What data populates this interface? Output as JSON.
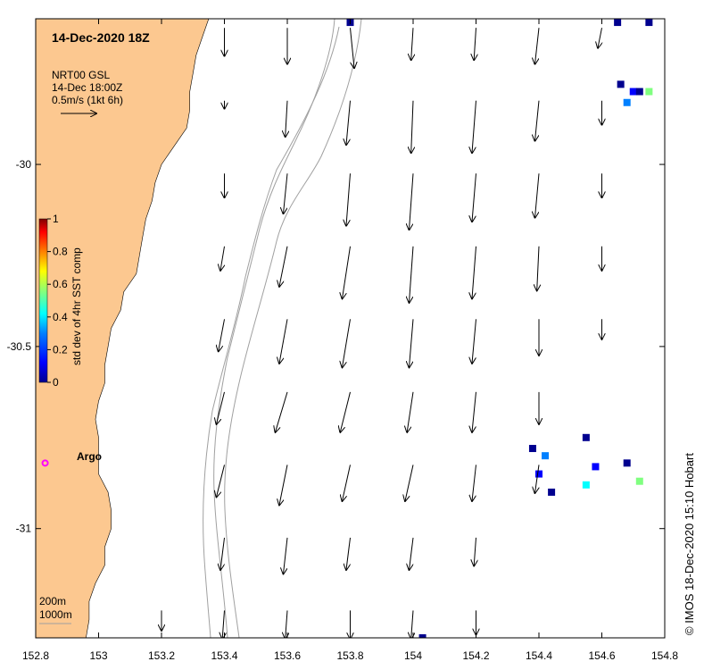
{
  "title": "14-Dec-2020 18Z",
  "product": {
    "line1": "NRT00 GSL",
    "line2": "14-Dec 18:00Z",
    "line3": "0.5m/s (1kt 6h)"
  },
  "colorbar": {
    "label": "std dev of 4hr SST comp",
    "ticks": [
      "1",
      "0.8",
      "0.6",
      "0.4",
      "0.2",
      "0"
    ],
    "colors": [
      "#7f0000",
      "#ff0000",
      "#ff8000",
      "#ffff00",
      "#80ff80",
      "#00ffff",
      "#0080ff",
      "#0000ff",
      "#00008f"
    ]
  },
  "x_ticks": [
    "152.8",
    "153",
    "153.2",
    "153.4",
    "153.6",
    "153.8",
    "154",
    "154.2",
    "154.4",
    "154.6",
    "154.8"
  ],
  "y_ticks": [
    "-30",
    "-30.5",
    "-31"
  ],
  "argo_label": "Argo",
  "isobaths": {
    "shallow": "200m",
    "deep": "1000m"
  },
  "credit": "© IMOS 18-Dec-2020 15:10 Hobart",
  "colors": {
    "land": "#fcc890",
    "argo": "#ff00ff",
    "isobath": "#a0a0a0",
    "sst_dark": "#00008f",
    "sst_mid": "#0000ff"
  },
  "map_data": {
    "lon_range": [
      152.8,
      154.8
    ],
    "lat_range": [
      -31.3,
      -29.6
    ],
    "land_coast_latlon": [
      [
        -29.6,
        153.35
      ],
      [
        -29.65,
        153.33
      ],
      [
        -29.7,
        153.31
      ],
      [
        -29.75,
        153.3
      ],
      [
        -29.8,
        153.29
      ],
      [
        -29.85,
        153.29
      ],
      [
        -29.9,
        153.28
      ],
      [
        -29.95,
        153.24
      ],
      [
        -30.0,
        153.2
      ],
      [
        -30.05,
        153.18
      ],
      [
        -30.1,
        153.17
      ],
      [
        -30.15,
        153.15
      ],
      [
        -30.2,
        153.14
      ],
      [
        -30.25,
        153.13
      ],
      [
        -30.3,
        153.12
      ],
      [
        -30.35,
        153.08
      ],
      [
        -30.4,
        153.07
      ],
      [
        -30.45,
        153.04
      ],
      [
        -30.5,
        153.03
      ],
      [
        -30.55,
        153.02
      ],
      [
        -30.6,
        153.02
      ],
      [
        -30.65,
        153.0
      ],
      [
        -30.7,
        152.99
      ],
      [
        -30.75,
        153.0
      ],
      [
        -30.8,
        153.0
      ],
      [
        -30.85,
        153.0
      ],
      [
        -30.9,
        153.03
      ],
      [
        -30.95,
        153.04
      ],
      [
        -31.0,
        153.04
      ],
      [
        -31.05,
        153.02
      ],
      [
        -31.1,
        153.02
      ],
      [
        -31.15,
        152.99
      ],
      [
        -31.2,
        152.97
      ],
      [
        -31.25,
        152.97
      ],
      [
        -31.3,
        152.96
      ]
    ],
    "argo_position": {
      "lat": -30.82,
      "lon": 152.83
    },
    "current_vectors": [
      {
        "lat": -29.625,
        "lon": 153.4,
        "u": 0.0,
        "v": -0.7
      },
      {
        "lat": -29.625,
        "lon": 153.6,
        "u": 0.0,
        "v": -0.9
      },
      {
        "lat": -29.625,
        "lon": 153.8,
        "u": 0.1,
        "v": -1.0
      },
      {
        "lat": -29.625,
        "lon": 154.0,
        "u": -0.05,
        "v": -0.8
      },
      {
        "lat": -29.625,
        "lon": 154.2,
        "u": -0.05,
        "v": -0.8
      },
      {
        "lat": -29.625,
        "lon": 154.4,
        "u": -0.1,
        "v": -0.9
      },
      {
        "lat": -29.625,
        "lon": 154.6,
        "u": -0.1,
        "v": -0.5
      },
      {
        "lat": -29.825,
        "lon": 153.4,
        "u": 0.0,
        "v": -0.2
      },
      {
        "lat": -29.825,
        "lon": 153.6,
        "u": -0.05,
        "v": -0.9
      },
      {
        "lat": -29.825,
        "lon": 153.8,
        "u": -0.1,
        "v": -1.1
      },
      {
        "lat": -29.825,
        "lon": 154.0,
        "u": -0.05,
        "v": -1.3
      },
      {
        "lat": -29.825,
        "lon": 154.2,
        "u": -0.1,
        "v": -1.3
      },
      {
        "lat": -29.825,
        "lon": 154.4,
        "u": -0.1,
        "v": -1.0
      },
      {
        "lat": -29.825,
        "lon": 154.6,
        "u": 0.0,
        "v": -0.6
      },
      {
        "lat": -30.025,
        "lon": 153.4,
        "u": 0.0,
        "v": -0.6
      },
      {
        "lat": -30.025,
        "lon": 153.6,
        "u": -0.1,
        "v": -1.0
      },
      {
        "lat": -30.025,
        "lon": 153.8,
        "u": -0.1,
        "v": -1.3
      },
      {
        "lat": -30.025,
        "lon": 154.0,
        "u": -0.1,
        "v": -1.4
      },
      {
        "lat": -30.025,
        "lon": 154.2,
        "u": -0.1,
        "v": -1.2
      },
      {
        "lat": -30.025,
        "lon": 154.4,
        "u": -0.1,
        "v": -1.1
      },
      {
        "lat": -30.025,
        "lon": 154.6,
        "u": 0.0,
        "v": -0.6
      },
      {
        "lat": -30.225,
        "lon": 153.4,
        "u": -0.1,
        "v": -0.6
      },
      {
        "lat": -30.225,
        "lon": 153.6,
        "u": -0.2,
        "v": -1.0
      },
      {
        "lat": -30.225,
        "lon": 153.8,
        "u": -0.2,
        "v": -1.3
      },
      {
        "lat": -30.225,
        "lon": 154.0,
        "u": -0.1,
        "v": -1.4
      },
      {
        "lat": -30.225,
        "lon": 154.2,
        "u": -0.1,
        "v": -1.3
      },
      {
        "lat": -30.225,
        "lon": 154.4,
        "u": -0.05,
        "v": -1.1
      },
      {
        "lat": -30.225,
        "lon": 154.6,
        "u": 0.0,
        "v": -0.6
      },
      {
        "lat": -30.425,
        "lon": 153.4,
        "u": -0.15,
        "v": -0.8
      },
      {
        "lat": -30.425,
        "lon": 153.6,
        "u": -0.2,
        "v": -1.1
      },
      {
        "lat": -30.425,
        "lon": 153.8,
        "u": -0.2,
        "v": -1.2
      },
      {
        "lat": -30.425,
        "lon": 154.0,
        "u": -0.1,
        "v": -1.2
      },
      {
        "lat": -30.425,
        "lon": 154.2,
        "u": -0.1,
        "v": -1.1
      },
      {
        "lat": -30.425,
        "lon": 154.4,
        "u": 0.0,
        "v": -0.9
      },
      {
        "lat": -30.425,
        "lon": 154.6,
        "u": 0.0,
        "v": -0.5
      },
      {
        "lat": -30.625,
        "lon": 153.4,
        "u": -0.2,
        "v": -0.8
      },
      {
        "lat": -30.625,
        "lon": 153.6,
        "u": -0.3,
        "v": -1.0
      },
      {
        "lat": -30.625,
        "lon": 153.8,
        "u": -0.25,
        "v": -1.0
      },
      {
        "lat": -30.625,
        "lon": 154.0,
        "u": -0.15,
        "v": -1.0
      },
      {
        "lat": -30.625,
        "lon": 154.2,
        "u": -0.1,
        "v": -1.0
      },
      {
        "lat": -30.625,
        "lon": 154.4,
        "u": 0.0,
        "v": -0.8
      },
      {
        "lat": -30.825,
        "lon": 153.4,
        "u": -0.2,
        "v": -0.8
      },
      {
        "lat": -30.825,
        "lon": 153.6,
        "u": -0.2,
        "v": -1.0
      },
      {
        "lat": -30.825,
        "lon": 153.8,
        "u": -0.2,
        "v": -0.9
      },
      {
        "lat": -30.825,
        "lon": 154.0,
        "u": -0.2,
        "v": -0.9
      },
      {
        "lat": -30.825,
        "lon": 154.2,
        "u": -0.1,
        "v": -0.9
      },
      {
        "lat": -30.825,
        "lon": 154.4,
        "u": -0.1,
        "v": -0.7
      },
      {
        "lat": -31.025,
        "lon": 153.4,
        "u": -0.1,
        "v": -0.8
      },
      {
        "lat": -31.025,
        "lon": 153.6,
        "u": -0.1,
        "v": -0.9
      },
      {
        "lat": -31.025,
        "lon": 153.8,
        "u": -0.1,
        "v": -0.8
      },
      {
        "lat": -31.025,
        "lon": 154.0,
        "u": -0.1,
        "v": -0.8
      },
      {
        "lat": -31.025,
        "lon": 154.2,
        "u": -0.05,
        "v": -0.7
      },
      {
        "lat": -31.225,
        "lon": 153.2,
        "u": 0.0,
        "v": -0.5
      },
      {
        "lat": -31.225,
        "lon": 153.4,
        "u": -0.05,
        "v": -0.7
      },
      {
        "lat": -31.225,
        "lon": 153.6,
        "u": -0.05,
        "v": -0.7
      },
      {
        "lat": -31.225,
        "lon": 153.8,
        "u": 0.0,
        "v": -0.7
      },
      {
        "lat": -31.225,
        "lon": 154.0,
        "u": -0.05,
        "v": -0.7
      },
      {
        "lat": -31.225,
        "lon": 154.2,
        "u": 0.0,
        "v": -0.6
      }
    ],
    "sst_cells": [
      {
        "lat": -29.61,
        "lon": 153.8,
        "c": "#00008f"
      },
      {
        "lat": -29.61,
        "lon": 154.65,
        "c": "#00008f"
      },
      {
        "lat": -29.61,
        "lon": 154.75,
        "c": "#00008f"
      },
      {
        "lat": -29.78,
        "lon": 154.66,
        "c": "#00008f"
      },
      {
        "lat": -29.8,
        "lon": 154.7,
        "c": "#0000ff"
      },
      {
        "lat": -29.83,
        "lon": 154.68,
        "c": "#0080ff"
      },
      {
        "lat": -29.8,
        "lon": 154.75,
        "c": "#80ff80"
      },
      {
        "lat": -29.8,
        "lon": 154.72,
        "c": "#00008f"
      },
      {
        "lat": -30.78,
        "lon": 154.38,
        "c": "#00008f"
      },
      {
        "lat": -30.8,
        "lon": 154.42,
        "c": "#0080ff"
      },
      {
        "lat": -30.85,
        "lon": 154.4,
        "c": "#0000ff"
      },
      {
        "lat": -30.9,
        "lon": 154.44,
        "c": "#00008f"
      },
      {
        "lat": -30.75,
        "lon": 154.55,
        "c": "#00008f"
      },
      {
        "lat": -30.83,
        "lon": 154.58,
        "c": "#0000ff"
      },
      {
        "lat": -30.88,
        "lon": 154.55,
        "c": "#00ffff"
      },
      {
        "lat": -30.82,
        "lon": 154.68,
        "c": "#00008f"
      },
      {
        "lat": -30.87,
        "lon": 154.72,
        "c": "#80ff80"
      },
      {
        "lat": -31.3,
        "lon": 154.03,
        "c": "#00008f"
      }
    ]
  }
}
